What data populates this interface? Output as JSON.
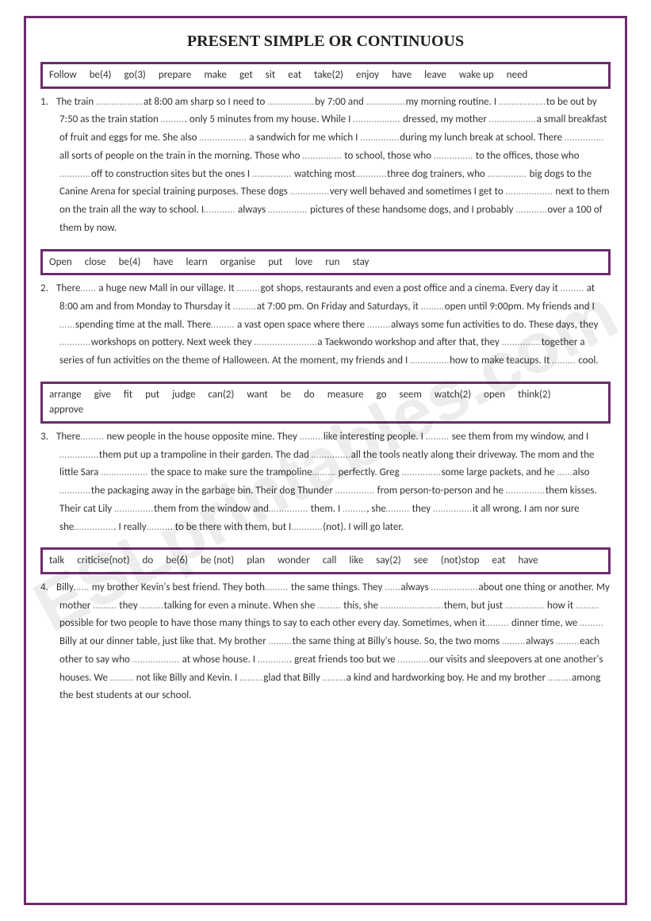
{
  "title": "PRESENT SIMPLE OR CONTINUOUS",
  "watermark": "ESLprintables.com",
  "sections": [
    {
      "words": [
        "Follow",
        "be(4)",
        "go(3)",
        "prepare",
        "make",
        "get",
        "sit",
        "eat",
        "take(2)",
        "enjoy",
        "have",
        "leave",
        "wake up",
        "need"
      ],
      "number": "1.",
      "text": "The train ………………at 8:00 am sharp so I need to ………………by 7:00 and ……………my morning routine. I ………………to be out by 7:50 as the train station ………. only 5 minutes from my house. While I ……………… dressed, my mother ………………a small breakfast of fruit and eggs for me. She also ……………… a sandwich for me which I ……………during my lunch break at school. There …………… all sorts of people on the train in the morning. Those who …………… to school, those who …………… to the offices, those who …………off to construction sites but the ones I …………… watching most…………three dog trainers, who …………… big dogs to the Canine Arena for special training purposes. These dogs ……………very well behaved and sometimes I get to ……………… next to them on the train all the way to school. I………… always …………… pictures of these handsome dogs, and I probably …………over a 100 of them by now."
    },
    {
      "words": [
        "Open",
        "close",
        "be(4)",
        "have",
        "learn",
        "organise",
        "put",
        "love",
        "run",
        "stay"
      ],
      "number": "2.",
      "text": "There…… a huge new Mall in our village. It ………got shops, restaurants and even a post office and a cinema. Every day it ……… at 8:00 am and from Monday to Thursday it ………at 7:00 pm. On Friday and Saturdays, it ………open until 9:00pm. My friends and I ……spending time at the mall. There……… a vast open space where there ………always some fun activities to do. These days, they …………workshops on pottery. Next week they ……………………a Taekwondo workshop and after that, they ……………together a series of fun activities on the theme of Halloween. At the moment, my friends and I ……………how to make teacups. It ……… cool."
    },
    {
      "words": [
        "arrange",
        "give",
        "fit",
        "put",
        "judge",
        "can(2)",
        "want",
        "be",
        "do",
        "measure",
        "go",
        "seem",
        "watch(2)",
        "open",
        "think(2)",
        "approve"
      ],
      "number": "3.",
      "text": "There……… new people in the house opposite mine. They ………like interesting people. I ……… see them from my window, and I ……………them put up a trampoline in their garden. The dad ……………all the tools neatly along their driveway. The mom and the little Sara ……………… the space to make sure the trampoline……… perfectly. Greg ……………some large packets, and he ……also …………the packaging away in the garbage bin. Their dog Thunder …………… from person-to-person and he ……………them kisses. Their cat Lily ……………them from the window and…………… them. I ………, she……… they ……………it all wrong. I am nor sure she……………. I really………. to be there with them, but I…………(not). I will go later."
    },
    {
      "words": [
        "talk",
        "criticise(not)",
        "do",
        "be(6)",
        "be (not)",
        "plan",
        "wonder",
        "call",
        "like",
        "say(2)",
        "see",
        "(not)stop",
        "eat",
        "have"
      ],
      "number": "4.",
      "text": "Billy…… my brother Kevin's best friend. They both……… the same things. They ……always ………………about one thing or another. My mother ……… they ………talking for even a minute. When she ……… this, she ……………………them, but just …………… how it ……… possible for two people to have those many things to say to each other every day. Sometimes, when it……… dinner time, we ………Billy at our dinner table, just like that. My brother ………the same thing at Billy's house.  So, the two moms ………always ………each other to say who ……………… at whose house. I …………. great friends too but we …………our visits and sleepovers at one another's houses. We ……… not like Billy and Kevin. I ………glad that Billy ………a kind and hardworking boy. He and my brother ………among the best students at our school."
    }
  ]
}
